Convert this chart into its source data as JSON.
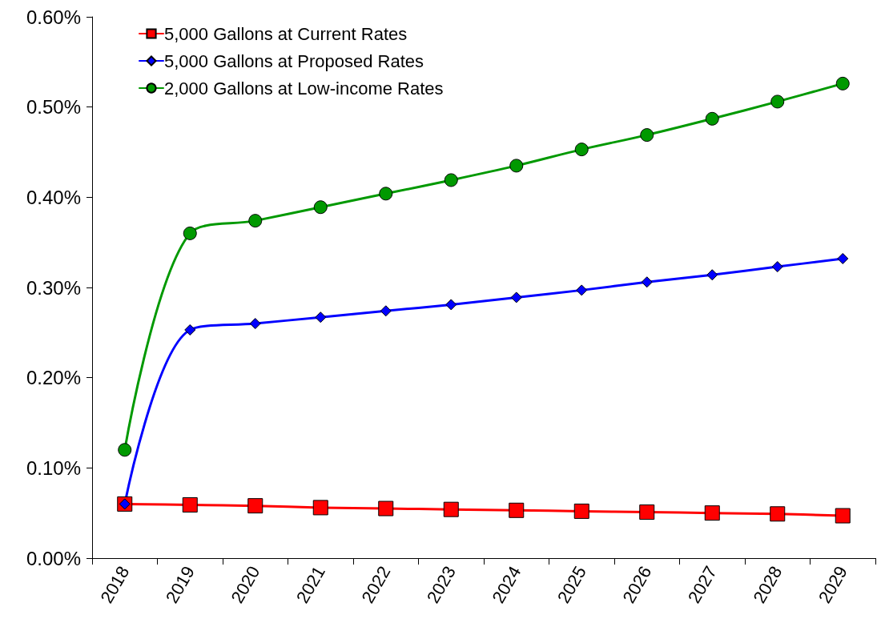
{
  "chart_data": {
    "type": "line",
    "categories": [
      "2018",
      "2019",
      "2020",
      "2021",
      "2022",
      "2023",
      "2024",
      "2025",
      "2026",
      "2027",
      "2028",
      "2029"
    ],
    "ylim": [
      0,
      0.6
    ],
    "yticks": [
      {
        "value": 0,
        "label": "0.00%"
      },
      {
        "value": 0.1,
        "label": "0.10%"
      },
      {
        "value": 0.2,
        "label": "0.20%"
      },
      {
        "value": 0.3,
        "label": "0.30%"
      },
      {
        "value": 0.4,
        "label": "0.40%"
      },
      {
        "value": 0.5,
        "label": "0.50%"
      },
      {
        "value": 0.6,
        "label": "0.60%"
      }
    ],
    "grid": false,
    "legend": "top left",
    "line_style": "solid",
    "series": [
      {
        "name": "5,000 Gallons at Current Rates",
        "color": "#ff0000",
        "marker": "square",
        "values": [
          0.06,
          0.059,
          0.058,
          0.056,
          0.055,
          0.054,
          0.053,
          0.052,
          0.051,
          0.05,
          0.049,
          0.047
        ]
      },
      {
        "name": "5,000 Gallons at Proposed Rates",
        "color": "#0000ff",
        "marker": "diamond",
        "values": [
          0.06,
          0.253,
          0.26,
          0.267,
          0.274,
          0.281,
          0.289,
          0.297,
          0.306,
          0.314,
          0.323,
          0.332
        ]
      },
      {
        "name": "2,000 Gallons at Low-income Rates",
        "color": "#009900",
        "marker": "circle",
        "values": [
          0.12,
          0.36,
          0.374,
          0.389,
          0.404,
          0.419,
          0.435,
          0.453,
          0.469,
          0.487,
          0.506,
          0.526
        ]
      }
    ]
  }
}
